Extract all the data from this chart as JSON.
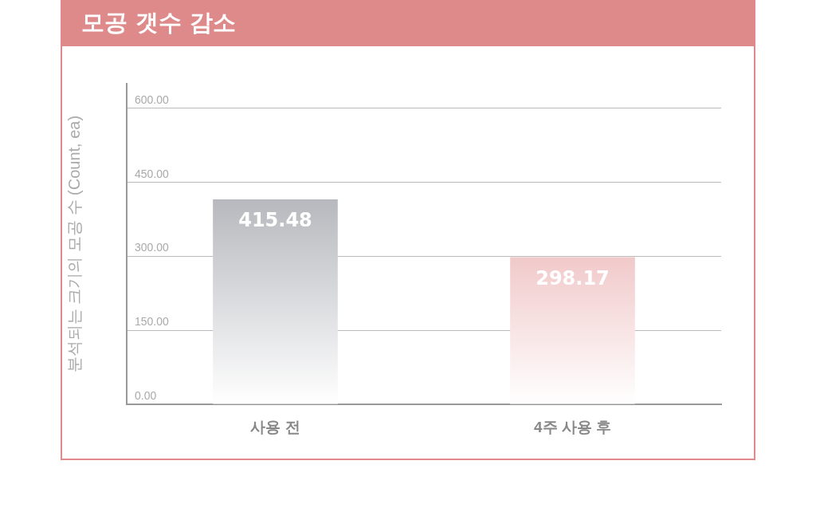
{
  "chart_data": {
    "type": "bar",
    "title": "모공 갯수 감소",
    "ylabel": "분석되는 크기의 모공 수 (Count, ea)",
    "categories": [
      "사용 전",
      "4주 사용 후"
    ],
    "values": [
      415.48,
      298.17
    ],
    "colors": [
      "#8e9199",
      "#e08a8c"
    ],
    "ylim": [
      0,
      650
    ],
    "yticks": [
      {
        "value": 0,
        "label": "0.00"
      },
      {
        "value": 150,
        "label": "150.00"
      },
      {
        "value": 300,
        "label": "300.00"
      },
      {
        "value": 450,
        "label": "450.00"
      },
      {
        "value": 600,
        "label": "600.00"
      }
    ],
    "grid": "y",
    "data_labels": true
  }
}
